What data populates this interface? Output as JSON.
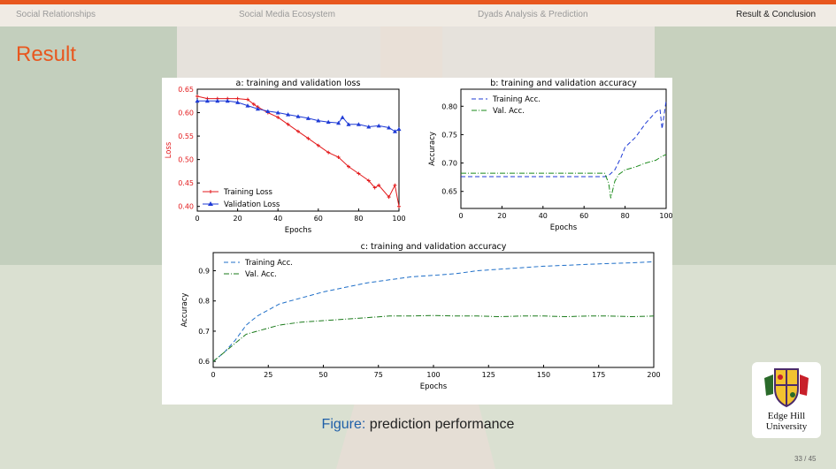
{
  "nav": {
    "items": [
      {
        "label": "Social Relationships",
        "active": false
      },
      {
        "label": "Social Media Ecosystem",
        "active": false
      },
      {
        "label": "Dyads Analysis & Prediction",
        "active": false
      },
      {
        "label": "Result & Conclusion",
        "active": true
      }
    ]
  },
  "frame_title": "Result",
  "caption": {
    "label": "Figure:",
    "text": "prediction performance"
  },
  "logo": {
    "line1": "Edge Hill",
    "line2": "University"
  },
  "page_number": "33 / 45",
  "colors": {
    "accent": "#e8571e",
    "caption_label": "#1f5fa8",
    "red": "#e31a1c",
    "blue": "#1f3bd6",
    "green": "#1a8a1a"
  },
  "chart_data": [
    {
      "type": "line",
      "title": "a: training and validation loss",
      "xlabel": "Epochs",
      "ylabel": "Loss",
      "xlim": [
        0,
        100
      ],
      "ylim": [
        0.39,
        0.65
      ],
      "xticks": [
        "0",
        "20",
        "40",
        "60",
        "80",
        "100"
      ],
      "yticks": [
        "0.40",
        "0.45",
        "0.50",
        "0.55",
        "0.60",
        "0.65"
      ],
      "legend": "lower-left",
      "series": [
        {
          "name": "Training Loss",
          "color": "#e31a1c",
          "marker": "plus",
          "x": [
            0,
            5,
            10,
            15,
            20,
            25,
            28,
            30,
            35,
            40,
            45,
            50,
            55,
            60,
            65,
            70,
            75,
            80,
            85,
            88,
            90,
            95,
            98,
            100
          ],
          "y": [
            0.635,
            0.63,
            0.63,
            0.63,
            0.63,
            0.628,
            0.618,
            0.612,
            0.6,
            0.59,
            0.575,
            0.56,
            0.545,
            0.53,
            0.515,
            0.505,
            0.485,
            0.47,
            0.455,
            0.44,
            0.445,
            0.42,
            0.445,
            0.4
          ]
        },
        {
          "name": "Validation Loss",
          "color": "#1f3bd6",
          "marker": "triangle",
          "x": [
            0,
            5,
            10,
            15,
            20,
            25,
            30,
            35,
            40,
            45,
            50,
            55,
            60,
            65,
            70,
            72,
            75,
            80,
            85,
            90,
            95,
            98,
            100
          ],
          "y": [
            0.625,
            0.625,
            0.625,
            0.625,
            0.622,
            0.615,
            0.608,
            0.603,
            0.6,
            0.596,
            0.592,
            0.588,
            0.583,
            0.58,
            0.578,
            0.59,
            0.575,
            0.575,
            0.57,
            0.572,
            0.568,
            0.56,
            0.565
          ]
        }
      ]
    },
    {
      "type": "line",
      "title": "b: training and validation accuracy",
      "xlabel": "Epochs",
      "ylabel": "Accuracy",
      "xlim": [
        0,
        100
      ],
      "ylim": [
        0.62,
        0.83
      ],
      "xticks": [
        "0",
        "20",
        "40",
        "60",
        "80",
        "100"
      ],
      "yticks": [
        "0.65",
        "0.70",
        "0.75",
        "0.80"
      ],
      "legend": "top-left",
      "series": [
        {
          "name": "Training Acc.",
          "color": "#1f3bd6",
          "style": "dashed",
          "x": [
            0,
            10,
            20,
            30,
            40,
            50,
            60,
            70,
            72,
            75,
            78,
            80,
            85,
            90,
            95,
            97,
            98,
            100
          ],
          "y": [
            0.676,
            0.676,
            0.676,
            0.676,
            0.676,
            0.676,
            0.676,
            0.676,
            0.678,
            0.688,
            0.71,
            0.728,
            0.745,
            0.77,
            0.79,
            0.795,
            0.76,
            0.81
          ]
        },
        {
          "name": "Val. Acc.",
          "color": "#1a8a1a",
          "style": "dash-dot",
          "x": [
            0,
            10,
            20,
            30,
            40,
            50,
            60,
            70,
            72,
            73,
            75,
            77,
            80,
            85,
            90,
            95,
            98,
            100
          ],
          "y": [
            0.682,
            0.682,
            0.682,
            0.682,
            0.682,
            0.682,
            0.682,
            0.682,
            0.665,
            0.638,
            0.668,
            0.68,
            0.688,
            0.693,
            0.7,
            0.705,
            0.712,
            0.715
          ]
        }
      ]
    },
    {
      "type": "line",
      "title": "c: training and validation accuracy",
      "xlabel": "Epochs",
      "ylabel": "Accuracy",
      "xlim": [
        0,
        200
      ],
      "ylim": [
        0.58,
        0.96
      ],
      "xticks": [
        "0",
        "25",
        "50",
        "75",
        "100",
        "125",
        "150",
        "175",
        "200"
      ],
      "yticks": [
        "0.6",
        "0.7",
        "0.8",
        "0.9"
      ],
      "legend": "top-left",
      "series": [
        {
          "name": "Training Acc.",
          "color": "#1f6fc8",
          "style": "dashed",
          "x": [
            0,
            5,
            10,
            15,
            20,
            25,
            30,
            35,
            40,
            50,
            60,
            70,
            80,
            90,
            100,
            110,
            120,
            130,
            140,
            150,
            160,
            170,
            180,
            190,
            200
          ],
          "y": [
            0.6,
            0.63,
            0.67,
            0.72,
            0.75,
            0.77,
            0.79,
            0.8,
            0.81,
            0.83,
            0.845,
            0.86,
            0.87,
            0.88,
            0.885,
            0.89,
            0.9,
            0.905,
            0.91,
            0.915,
            0.918,
            0.921,
            0.924,
            0.926,
            0.93
          ]
        },
        {
          "name": "Val. Acc.",
          "color": "#1a7a1a",
          "style": "dash-dot",
          "x": [
            0,
            5,
            10,
            15,
            20,
            25,
            30,
            35,
            40,
            50,
            60,
            70,
            80,
            90,
            100,
            110,
            120,
            130,
            140,
            150,
            160,
            170,
            180,
            190,
            200
          ],
          "y": [
            0.6,
            0.63,
            0.66,
            0.69,
            0.7,
            0.71,
            0.72,
            0.725,
            0.73,
            0.735,
            0.74,
            0.745,
            0.75,
            0.75,
            0.752,
            0.75,
            0.75,
            0.748,
            0.75,
            0.75,
            0.748,
            0.75,
            0.75,
            0.748,
            0.75
          ]
        }
      ]
    }
  ]
}
